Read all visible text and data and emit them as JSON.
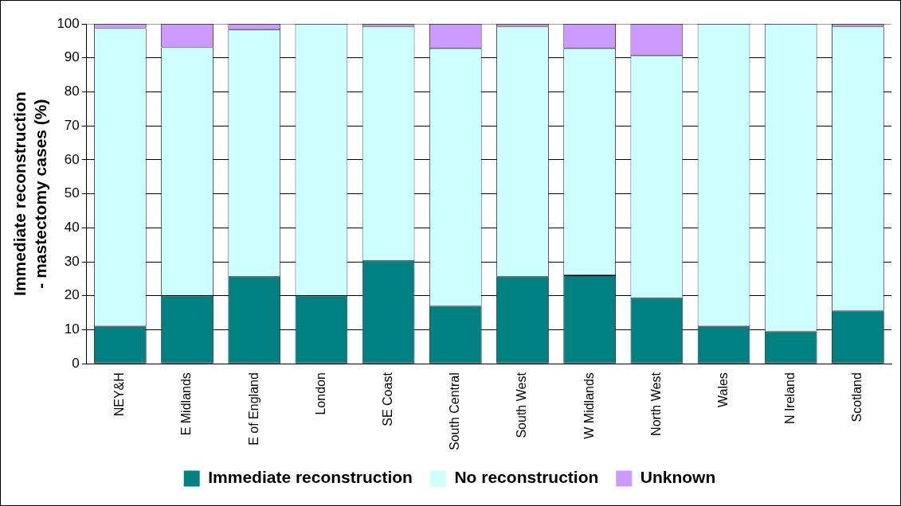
{
  "chart_data": {
    "type": "bar",
    "stacked": true,
    "ylabel": "Immediate reconstruction\n- mastectomy cases (%)",
    "categories": [
      "NEY&H",
      "E Midlands",
      "E of England",
      "London",
      "SE Coast",
      "South Central",
      "South West",
      "W Midlands",
      "North West",
      "Wales",
      "N Ireland",
      "Scotland"
    ],
    "series": [
      {
        "name": "Immediate reconstruction",
        "color": "#008080",
        "values": [
          11,
          20,
          25.6,
          20,
          30.3,
          17,
          25.6,
          26,
          19.3,
          11,
          9.5,
          15.6
        ]
      },
      {
        "name": "No reconstruction",
        "color": "#ccffff",
        "values": [
          87.7,
          73.1,
          72.7,
          80,
          68.9,
          75.8,
          73.6,
          66.8,
          71.4,
          89,
          90.5,
          83.6
        ]
      },
      {
        "name": "Unknown",
        "color": "#cc99ff",
        "values": [
          1.3,
          6.9,
          1.7,
          0,
          0.8,
          7.2,
          0.8,
          7.2,
          9.3,
          0,
          0,
          0.8
        ]
      }
    ],
    "ylim": [
      0,
      100
    ],
    "yticks": [
      0,
      10,
      20,
      30,
      40,
      50,
      60,
      70,
      80,
      90,
      100
    ],
    "grid": "y",
    "legend": "bottom"
  }
}
